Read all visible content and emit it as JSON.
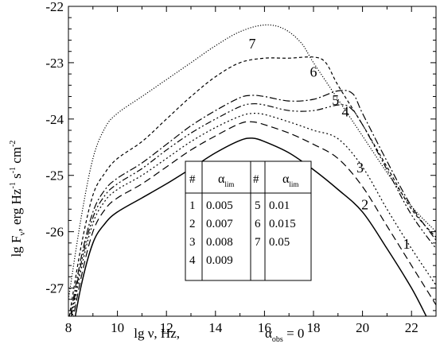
{
  "chart_data": {
    "type": "line",
    "xlabel": "lg ν, Hz,",
    "xlabel_note": "α",
    "xlabel_note_sub": "obs",
    "xlabel_note_eq": " = 0",
    "ylabel_main": "lg F",
    "ylabel_sub": "ν",
    "ylabel_unit": ", erg Hz",
    "ylabel_unit_sup": "-1",
    "ylabel_unit2": " s",
    "ylabel_unit2_sup": "-1",
    "ylabel_unit3": " cm",
    "ylabel_unit3_sup": "-2",
    "xlim": [
      8,
      23
    ],
    "ylim": [
      -27.5,
      -22
    ],
    "xticks": [
      8,
      10,
      12,
      14,
      16,
      18,
      20,
      22
    ],
    "yticks": [
      -22,
      -23,
      -24,
      -25,
      -26,
      -27
    ],
    "xtick_labels": [
      "8",
      "10",
      "12",
      "14",
      "16",
      "18",
      "20",
      "22"
    ],
    "ytick_labels": [
      "-22",
      "-23",
      "-24",
      "-25",
      "-26",
      "-27"
    ],
    "series": [
      {
        "name": "1",
        "style": "solid",
        "points": [
          [
            8,
            -28.2
          ],
          [
            8.5,
            -27.0
          ],
          [
            9,
            -26.2
          ],
          [
            9.5,
            -25.85
          ],
          [
            10,
            -25.65
          ],
          [
            11,
            -25.4
          ],
          [
            12,
            -25.15
          ],
          [
            13,
            -24.88
          ],
          [
            14,
            -24.6
          ],
          [
            15,
            -24.38
          ],
          [
            15.5,
            -24.34
          ],
          [
            16,
            -24.4
          ],
          [
            17,
            -24.6
          ],
          [
            18,
            -24.9
          ],
          [
            19,
            -25.25
          ],
          [
            20,
            -25.65
          ],
          [
            21,
            -26.3
          ],
          [
            22,
            -27.0
          ],
          [
            22.6,
            -27.5
          ]
        ]
      },
      {
        "name": "2",
        "style": "dashed",
        "points": [
          [
            8,
            -28.0
          ],
          [
            8.5,
            -26.85
          ],
          [
            9,
            -26.0
          ],
          [
            9.5,
            -25.6
          ],
          [
            10,
            -25.4
          ],
          [
            11,
            -25.15
          ],
          [
            12,
            -24.85
          ],
          [
            13,
            -24.55
          ],
          [
            14,
            -24.3
          ],
          [
            15,
            -24.08
          ],
          [
            15.5,
            -24.05
          ],
          [
            16,
            -24.1
          ],
          [
            17,
            -24.25
          ],
          [
            18,
            -24.45
          ],
          [
            19,
            -24.7
          ],
          [
            20,
            -25.2
          ],
          [
            21,
            -25.9
          ],
          [
            22,
            -26.6
          ],
          [
            23,
            -27.3
          ]
        ]
      },
      {
        "name": "3",
        "style": "dotted",
        "points": [
          [
            8,
            -27.9
          ],
          [
            8.5,
            -26.7
          ],
          [
            9,
            -25.85
          ],
          [
            9.5,
            -25.45
          ],
          [
            10,
            -25.25
          ],
          [
            11,
            -25.0
          ],
          [
            12,
            -24.7
          ],
          [
            13,
            -24.4
          ],
          [
            14,
            -24.15
          ],
          [
            15,
            -23.95
          ],
          [
            15.5,
            -23.9
          ],
          [
            16,
            -23.92
          ],
          [
            17,
            -24.05
          ],
          [
            18,
            -24.2
          ],
          [
            19,
            -24.35
          ],
          [
            20,
            -24.85
          ],
          [
            21,
            -25.6
          ],
          [
            22,
            -26.3
          ],
          [
            23,
            -26.95
          ]
        ]
      },
      {
        "name": "4",
        "style": "dashdotdot",
        "points": [
          [
            8,
            -27.8
          ],
          [
            8.5,
            -26.6
          ],
          [
            9,
            -25.75
          ],
          [
            9.5,
            -25.35
          ],
          [
            10,
            -25.15
          ],
          [
            11,
            -24.88
          ],
          [
            12,
            -24.55
          ],
          [
            13,
            -24.25
          ],
          [
            14,
            -24.0
          ],
          [
            15,
            -23.78
          ],
          [
            15.5,
            -23.73
          ],
          [
            16,
            -23.75
          ],
          [
            17,
            -23.85
          ],
          [
            18,
            -23.85
          ],
          [
            19,
            -23.75
          ],
          [
            19.5,
            -23.8
          ],
          [
            20,
            -24.1
          ],
          [
            21,
            -24.9
          ],
          [
            22,
            -25.7
          ],
          [
            23,
            -26.3
          ]
        ]
      },
      {
        "name": "5",
        "style": "dashdot",
        "points": [
          [
            8,
            -27.7
          ],
          [
            8.5,
            -26.5
          ],
          [
            9,
            -25.65
          ],
          [
            9.5,
            -25.25
          ],
          [
            10,
            -25.05
          ],
          [
            11,
            -24.78
          ],
          [
            12,
            -24.45
          ],
          [
            13,
            -24.12
          ],
          [
            14,
            -23.85
          ],
          [
            15,
            -23.62
          ],
          [
            15.5,
            -23.58
          ],
          [
            16,
            -23.6
          ],
          [
            17,
            -23.68
          ],
          [
            18,
            -23.65
          ],
          [
            19,
            -23.5
          ],
          [
            19.6,
            -23.55
          ],
          [
            20,
            -23.9
          ],
          [
            21,
            -24.75
          ],
          [
            22,
            -25.55
          ],
          [
            23,
            -26.15
          ]
        ]
      },
      {
        "name": "6",
        "style": "shortdash",
        "points": [
          [
            8,
            -27.6
          ],
          [
            8.5,
            -26.3
          ],
          [
            9,
            -25.35
          ],
          [
            9.5,
            -24.95
          ],
          [
            10,
            -24.7
          ],
          [
            11,
            -24.4
          ],
          [
            12,
            -24.0
          ],
          [
            13,
            -23.6
          ],
          [
            14,
            -23.25
          ],
          [
            15,
            -23.0
          ],
          [
            16,
            -22.92
          ],
          [
            17,
            -22.92
          ],
          [
            18,
            -22.9
          ],
          [
            18.5,
            -23.0
          ],
          [
            19,
            -23.4
          ],
          [
            20,
            -24.1
          ],
          [
            21,
            -24.85
          ],
          [
            22,
            -25.6
          ],
          [
            23,
            -26.1
          ]
        ]
      },
      {
        "name": "7",
        "style": "finedot",
        "points": [
          [
            8,
            -27.2
          ],
          [
            8.5,
            -25.8
          ],
          [
            9,
            -24.7
          ],
          [
            9.5,
            -24.15
          ],
          [
            10,
            -23.9
          ],
          [
            11,
            -23.6
          ],
          [
            12,
            -23.3
          ],
          [
            13,
            -23.0
          ],
          [
            14,
            -22.7
          ],
          [
            15,
            -22.45
          ],
          [
            16,
            -22.33
          ],
          [
            16.8,
            -22.4
          ],
          [
            17.5,
            -22.65
          ],
          [
            18,
            -23.0
          ],
          [
            19,
            -23.65
          ],
          [
            20,
            -24.3
          ],
          [
            21,
            -24.95
          ],
          [
            22,
            -25.55
          ],
          [
            23,
            -26.0
          ]
        ]
      }
    ],
    "curve_labels": [
      {
        "text": "1",
        "x": 21.8,
        "y": -26.3
      },
      {
        "text": "2",
        "x": 20.1,
        "y": -25.6
      },
      {
        "text": "3",
        "x": 19.9,
        "y": -24.95
      },
      {
        "text": "4",
        "x": 19.3,
        "y": -23.95
      },
      {
        "text": "5",
        "x": 18.9,
        "y": -23.75
      },
      {
        "text": "6",
        "x": 18.0,
        "y": -23.25
      },
      {
        "text": "7",
        "x": 15.5,
        "y": -22.75
      }
    ],
    "table": {
      "headers": [
        "#",
        "α",
        "#",
        "α"
      ],
      "header_sub": "lim",
      "rows": [
        [
          "1",
          "0.005",
          "5",
          "0.01"
        ],
        [
          "2",
          "0.007",
          "6",
          "0.015"
        ],
        [
          "3",
          "0.008",
          "7",
          "0.05"
        ],
        [
          "4",
          "0.009",
          "",
          ""
        ]
      ]
    }
  }
}
